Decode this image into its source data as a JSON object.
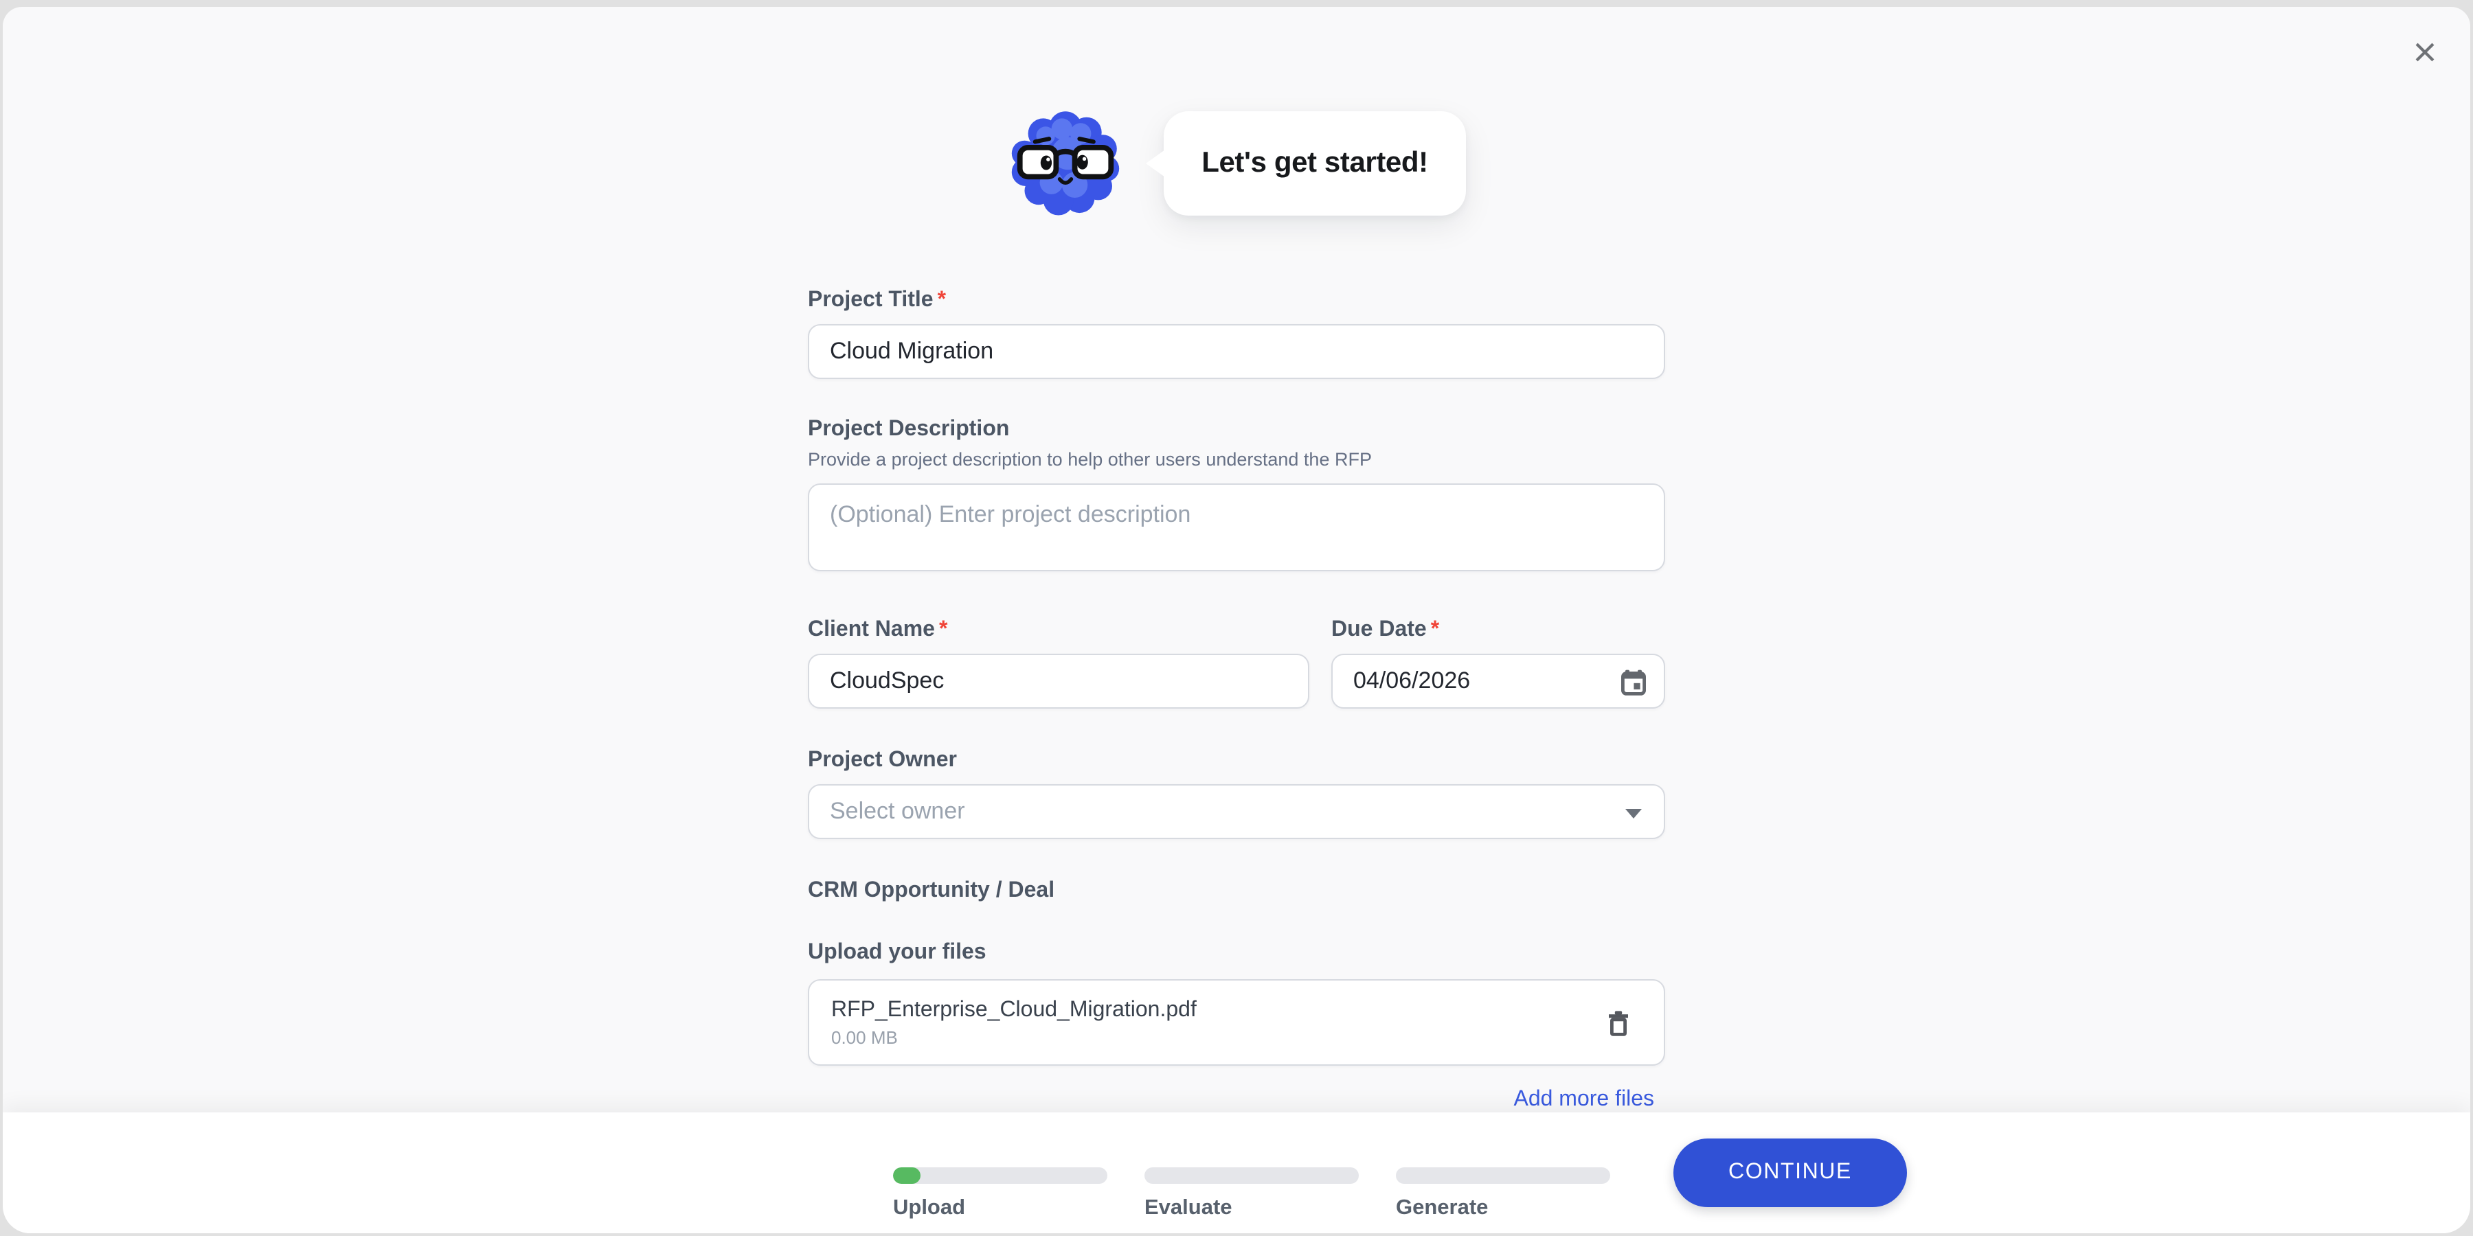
{
  "modal": {
    "greeting": "Let's get started!"
  },
  "form": {
    "project_title": {
      "label": "Project Title",
      "required_marker": "*",
      "value": "Cloud Migration"
    },
    "project_description": {
      "label": "Project Description",
      "helper": "Provide a project description to help other users understand the RFP",
      "placeholder": "(Optional) Enter project description"
    },
    "client_name": {
      "label": "Client Name",
      "required_marker": "*",
      "value": "CloudSpec"
    },
    "due_date": {
      "label": "Due Date",
      "required_marker": "*",
      "value": "04/06/2026"
    },
    "project_owner": {
      "label": "Project Owner",
      "placeholder": "Select owner"
    },
    "crm_opportunity": {
      "label": "CRM Opportunity / Deal"
    },
    "upload": {
      "label": "Upload your files",
      "files": [
        {
          "name": "RFP_Enterprise_Cloud_Migration.pdf",
          "size": "0.00 MB"
        }
      ],
      "add_more_label": "Add more files"
    }
  },
  "footer": {
    "steps": [
      {
        "label": "Upload",
        "progress_percent": 13
      },
      {
        "label": "Evaluate",
        "progress_percent": 0
      },
      {
        "label": "Generate",
        "progress_percent": 0
      }
    ],
    "continue_label": "CONTINUE"
  },
  "icons": {
    "close": "close-icon",
    "calendar": "calendar-icon",
    "trash": "trash-icon",
    "dropdown": "chevron-down-icon",
    "mascot": "assistant-mascot"
  },
  "colors": {
    "accent_blue": "#3051D6",
    "link_blue": "#3A5BE0",
    "progress_green": "#57BA61",
    "required_red": "#F04438",
    "modal_bg": "#F9F9FA",
    "footer_bg": "#FFFFFF"
  }
}
